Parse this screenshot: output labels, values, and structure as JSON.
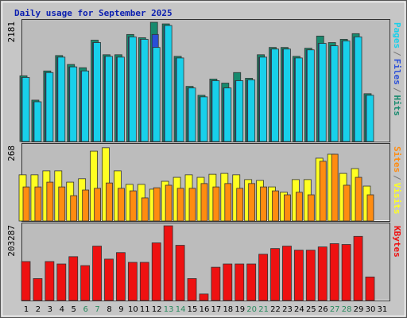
{
  "title": "Daily usage for September 2025",
  "legend_separator": "/",
  "chart_data": [
    {
      "type": "bar",
      "ylim": [
        0,
        2181
      ],
      "yticks": [
        2181
      ],
      "series": [
        {
          "name": "Hits",
          "color": "#178a6e",
          "values": [
            1194,
            752,
            1282,
            1562,
            1400,
            1341,
            1842,
            1577,
            1577,
            1945,
            1886,
            2166,
            2137,
            1547,
            1002,
            840,
            1135,
            1061,
            1253,
            1149,
            1577,
            1709,
            1709,
            1547,
            1695,
            1916,
            1798,
            1857,
            1960,
            869,
            null
          ]
        },
        {
          "name": "Files",
          "color": "#2a4fd8",
          "values": [
            1164,
            722,
            1253,
            1533,
            1356,
            1282,
            1798,
            1547,
            1533,
            1901,
            1857,
            1945,
            2108,
            1518,
            973,
            811,
            1105,
            973,
            1105,
            1120,
            1533,
            1680,
            1680,
            1518,
            1665,
            1783,
            1739,
            1827,
            1901,
            840,
            null
          ]
        },
        {
          "name": "Pages",
          "color": "#18d0ea",
          "values": [
            1164,
            722,
            1253,
            1533,
            1356,
            1282,
            1798,
            1547,
            1533,
            1901,
            1857,
            1709,
            2108,
            1518,
            973,
            811,
            1105,
            973,
            1105,
            1120,
            1533,
            1680,
            1680,
            1518,
            1665,
            1783,
            1739,
            1827,
            1901,
            840,
            null
          ]
        }
      ]
    },
    {
      "type": "bar",
      "ylim": [
        0,
        268
      ],
      "yticks": [
        268
      ],
      "series": [
        {
          "name": "Visits",
          "color": "#ffff22",
          "values": [
            164,
            164,
            178,
            178,
            138,
            150,
            248,
            260,
            178,
            130,
            130,
            113,
            141,
            155,
            164,
            155,
            166,
            169,
            164,
            147,
            144,
            121,
            102,
            147,
            147,
            223,
            237,
            169,
            186,
            124,
            null
          ]
        },
        {
          "name": "Sites",
          "color": "#ff8c10",
          "values": [
            121,
            121,
            138,
            121,
            90,
            110,
            116,
            135,
            116,
            107,
            82,
            118,
            127,
            116,
            116,
            133,
            121,
            133,
            116,
            133,
            121,
            107,
            93,
            102,
            93,
            212,
            237,
            127,
            155,
            93,
            null
          ]
        }
      ]
    },
    {
      "type": "bar",
      "ylim": [
        0,
        203287
      ],
      "yticks": [
        203287
      ],
      "categories": [
        "1",
        "2",
        "3",
        "4",
        "5",
        "6",
        "7",
        "8",
        "9",
        "10",
        "11",
        "12",
        "13",
        "14",
        "15",
        "16",
        "17",
        "18",
        "19",
        "20",
        "21",
        "22",
        "23",
        "24",
        "25",
        "26",
        "27",
        "28",
        "29",
        "30",
        "31"
      ],
      "category_colors": [
        "#000",
        "#000",
        "#000",
        "#000",
        "#000",
        "#2a8a5e",
        "#2a8a5e",
        "#000",
        "#000",
        "#000",
        "#000",
        "#000",
        "#2a8a5e",
        "#2a8a5e",
        "#000",
        "#000",
        "#000",
        "#000",
        "#000",
        "#2a8a5e",
        "#2a8a5e",
        "#000",
        "#000",
        "#000",
        "#000",
        "#000",
        "#2a8a5e",
        "#2a8a5e",
        "#000",
        "#000",
        "#000"
      ],
      "series": [
        {
          "name": "KBytes",
          "color": "#ee1111",
          "values": [
            104921,
            59017,
            104921,
            98363,
            118036,
            93992,
            146452,
            111478,
            128964,
            102735,
            102735,
            155196,
            201101,
            148638,
            59017,
            17487,
            89620,
            98363,
            98363,
            98363,
            124592,
            139893,
            146452,
            135521,
            135521,
            144266,
            153010,
            150824,
            172682,
            63389,
            null
          ]
        }
      ]
    }
  ]
}
